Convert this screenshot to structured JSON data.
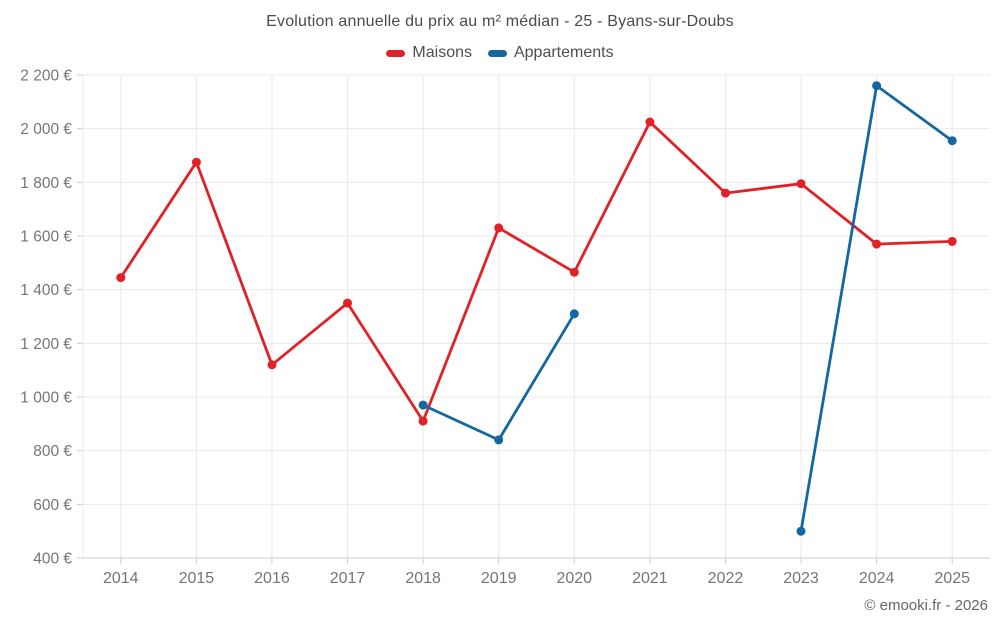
{
  "copyright": "© emooki.fr - 2026",
  "colors": {
    "maisons": "#e02227",
    "appartements": "#15689f",
    "gridline": "#e9e9e9",
    "axis_line": "#cccccc",
    "tick_label": "#757575",
    "title_text": "#4b4b4b"
  },
  "chart_data": {
    "type": "line",
    "title": "Evolution annuelle du prix au m² médian - 25 - Byans-sur-Doubs",
    "xlabel": "",
    "ylabel": "",
    "categories": [
      "2014",
      "2015",
      "2016",
      "2017",
      "2018",
      "2019",
      "2020",
      "2021",
      "2022",
      "2023",
      "2024",
      "2025"
    ],
    "series": [
      {
        "name": "Maisons",
        "color": "#e02227",
        "values": [
          1445,
          1875,
          1120,
          1350,
          910,
          1630,
          1465,
          2025,
          1760,
          1795,
          1570,
          1580
        ]
      },
      {
        "name": "Appartements",
        "color": "#15689f",
        "values": [
          null,
          null,
          null,
          null,
          970,
          840,
          1310,
          null,
          null,
          500,
          2160,
          1955
        ]
      }
    ],
    "ylim": [
      400,
      2200
    ],
    "yticks": [
      {
        "value": 400,
        "label": "400 €"
      },
      {
        "value": 600,
        "label": "600 €"
      },
      {
        "value": 800,
        "label": "800 €"
      },
      {
        "value": 1000,
        "label": "1 000 €"
      },
      {
        "value": 1200,
        "label": "1 200 €"
      },
      {
        "value": 1400,
        "label": "1 400 €"
      },
      {
        "value": 1600,
        "label": "1 600 €"
      },
      {
        "value": 1800,
        "label": "1 800 €"
      },
      {
        "value": 2000,
        "label": "2 000 €"
      },
      {
        "value": 2200,
        "label": "2 200 €"
      }
    ],
    "grid": true,
    "legend_position": "top"
  }
}
